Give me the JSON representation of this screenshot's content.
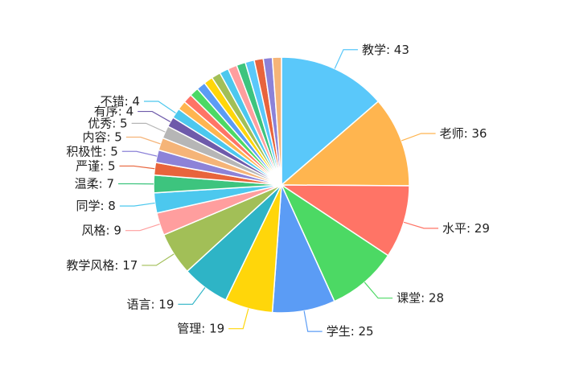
{
  "chart_data": {
    "type": "pie",
    "title": "",
    "categories": [
      "教学",
      "老师",
      "水平",
      "课堂",
      "学生",
      "管理",
      "语言",
      "教学风格",
      "风格",
      "同学",
      "温柔",
      "严谨",
      "积极性",
      "内容",
      "优秀",
      "有序",
      "不错",
      "",
      "",
      "",
      "",
      "",
      "",
      "",
      "",
      "",
      "",
      "",
      "",
      ""
    ],
    "values": [
      43,
      36,
      29,
      28,
      25,
      19,
      19,
      17,
      9,
      8,
      7,
      5,
      5,
      5,
      5,
      4,
      4,
      3.6,
      3.6,
      3.6,
      3.6,
      3.6,
      3.6,
      3.6,
      3.6,
      3.6,
      3.6,
      3.6,
      3.6,
      3.6
    ],
    "label_texts": [
      "教学: 43",
      "老师: 36",
      "水平: 29",
      "课堂: 28",
      "学生: 25",
      "管理: 19",
      "语言: 19",
      "教学风格: 17",
      "风格: 9",
      "同学: 8",
      "温柔: 7",
      "严谨: 5",
      "积极性: 5",
      "内容: 5",
      "优秀: 5",
      "有序: 4",
      "不错: 4",
      "",
      "",
      "",
      "",
      "",
      "",
      "",
      "",
      "",
      "",
      "",
      "",
      ""
    ],
    "colors": [
      "#5AC8FA",
      "#FFB54F",
      "#FF7466",
      "#4CD964",
      "#5B9CF5",
      "#FFD60A",
      "#2EB4C6",
      "#A2BF57",
      "#FF9E9E",
      "#4CC8EE",
      "#3DC47E",
      "#E8643C",
      "#8C82D8",
      "#F5B478",
      "#B6B6B6",
      "#6E5AAA",
      "#4CC8EE",
      "#FFB54F",
      "#FF7466",
      "#4CD964",
      "#5B9CF5",
      "#FFD60A",
      "#A2BF57",
      "#4CC8EE",
      "#FF9E9E",
      "#3DC47E",
      "#5AC8FA",
      "#E8643C",
      "#8C82D8",
      "#F5B478"
    ]
  }
}
